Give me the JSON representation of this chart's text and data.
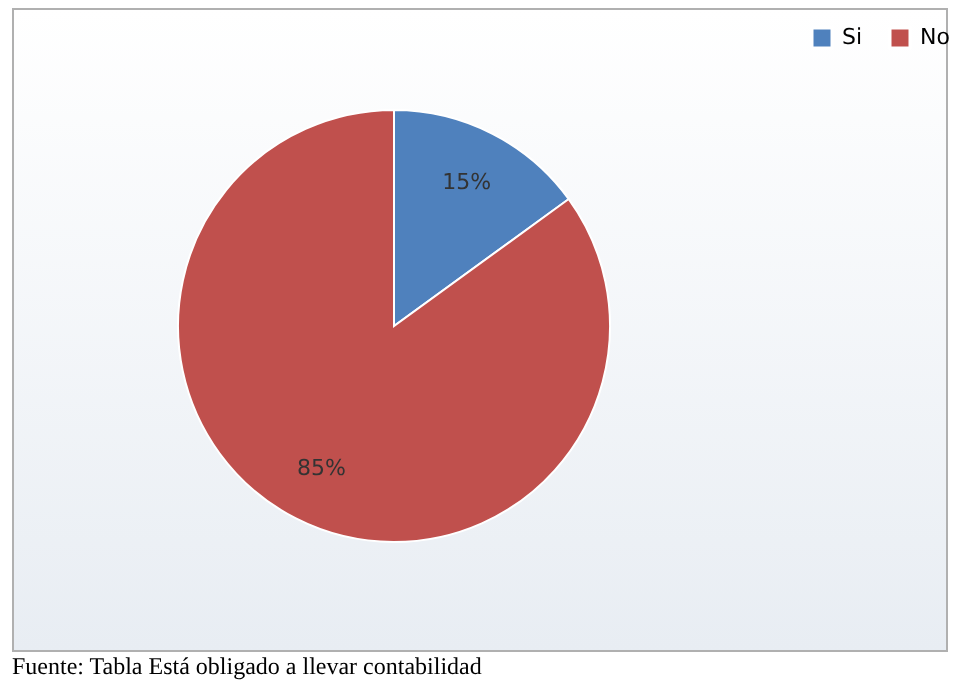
{
  "chart_data": {
    "type": "pie",
    "categories": [
      "Si",
      "No"
    ],
    "values": [
      15,
      85
    ],
    "colors": [
      "#4f81bd",
      "#c0504d"
    ],
    "value_labels": [
      "15%",
      "85%"
    ],
    "legend": "right",
    "annotations": [
      "Fuente: Tabla Está obligado a llevar contabilidad"
    ]
  }
}
